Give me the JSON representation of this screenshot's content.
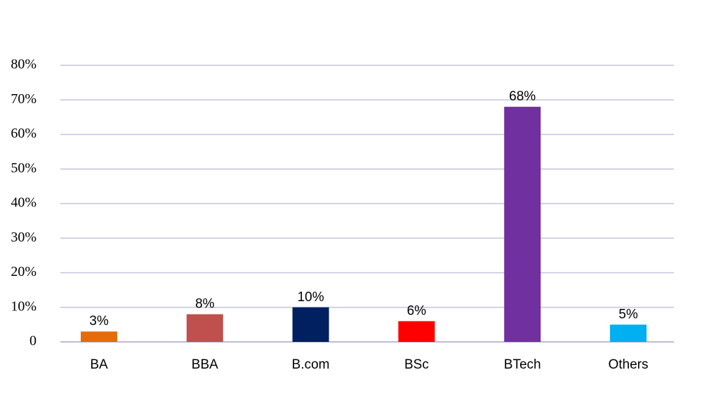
{
  "chart_data": {
    "type": "bar",
    "categories": [
      "BA",
      "BBA",
      "B.com",
      "BSc",
      "BTech",
      "Others"
    ],
    "values": [
      3,
      8,
      10,
      6,
      68,
      5
    ],
    "value_labels": [
      "3%",
      "8%",
      "10%",
      "6%",
      "68%",
      "5%"
    ],
    "colors": [
      "#e46c0a",
      "#c0504d",
      "#002060",
      "#ff0000",
      "#7030a0",
      "#00b0f0"
    ],
    "ylim": [
      0,
      80
    ],
    "yticks": [
      {
        "value": 0,
        "label": "0"
      },
      {
        "value": 10,
        "label": "10%"
      },
      {
        "value": 20,
        "label": "20%"
      },
      {
        "value": 30,
        "label": "30%"
      },
      {
        "value": 40,
        "label": "40%"
      },
      {
        "value": 50,
        "label": "50%"
      },
      {
        "value": 60,
        "label": "60%"
      },
      {
        "value": 70,
        "label": "70%"
      },
      {
        "value": 80,
        "label": "80%"
      }
    ],
    "grid": true
  }
}
